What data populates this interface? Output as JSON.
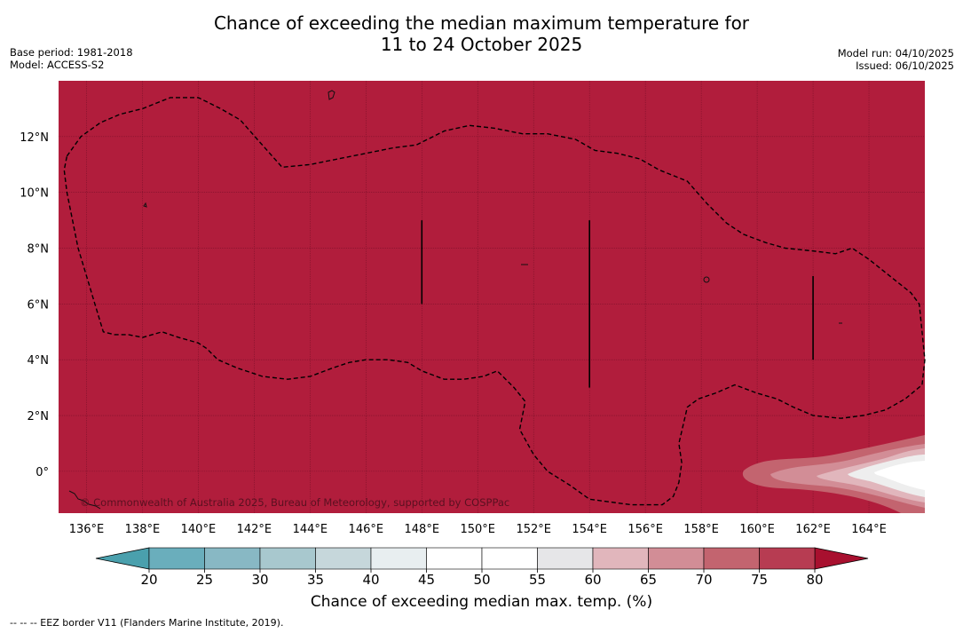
{
  "title": {
    "line1": "Chance of exceeding the median maximum temperature for",
    "line2": "11 to 24 October 2025"
  },
  "meta": {
    "base_period": "Base period: 1981-2018",
    "model": "Model: ACCESS-S2",
    "model_run": "Model run: 04/10/2025",
    "issued": "Issued: 06/10/2025"
  },
  "map": {
    "fill_color": "#b11d3c",
    "lon_range": [
      135,
      166
    ],
    "lat_range": [
      -1.5,
      14
    ],
    "lon_ticks": [
      {
        "value": 136,
        "label": "136°E"
      },
      {
        "value": 138,
        "label": "138°E"
      },
      {
        "value": 140,
        "label": "140°E"
      },
      {
        "value": 142,
        "label": "142°E"
      },
      {
        "value": 144,
        "label": "144°E"
      },
      {
        "value": 146,
        "label": "146°E"
      },
      {
        "value": 148,
        "label": "148°E"
      },
      {
        "value": 150,
        "label": "150°E"
      },
      {
        "value": 152,
        "label": "152°E"
      },
      {
        "value": 154,
        "label": "154°E"
      },
      {
        "value": 156,
        "label": "156°E"
      },
      {
        "value": 158,
        "label": "158°E"
      },
      {
        "value": 160,
        "label": "160°E"
      },
      {
        "value": 162,
        "label": "162°E"
      },
      {
        "value": 164,
        "label": "164°E"
      }
    ],
    "lat_ticks": [
      {
        "value": 12,
        "label": "12°N"
      },
      {
        "value": 10,
        "label": "10°N"
      },
      {
        "value": 8,
        "label": "8°N"
      },
      {
        "value": 6,
        "label": "6°N"
      },
      {
        "value": 4,
        "label": "4°N"
      },
      {
        "value": 2,
        "label": "2°N"
      },
      {
        "value": 0,
        "label": "0°"
      }
    ],
    "eez_border": [
      [
        135.3,
        11.3
      ],
      [
        135.8,
        12.0
      ],
      [
        136.5,
        12.5
      ],
      [
        137.2,
        12.8
      ],
      [
        138.0,
        13.0
      ],
      [
        139.0,
        13.4
      ],
      [
        140.0,
        13.4
      ],
      [
        140.8,
        13.0
      ],
      [
        141.5,
        12.6
      ],
      [
        142.2,
        11.8
      ],
      [
        143.0,
        10.9
      ],
      [
        144.0,
        11.0
      ],
      [
        145.0,
        11.2
      ],
      [
        146.0,
        11.4
      ],
      [
        147.0,
        11.6
      ],
      [
        147.8,
        11.7
      ],
      [
        148.8,
        12.2
      ],
      [
        149.7,
        12.4
      ],
      [
        150.6,
        12.3
      ],
      [
        151.6,
        12.1
      ],
      [
        152.5,
        12.1
      ],
      [
        153.5,
        11.9
      ],
      [
        154.2,
        11.5
      ],
      [
        155.0,
        11.4
      ],
      [
        155.8,
        11.2
      ],
      [
        156.5,
        10.8
      ],
      [
        157.5,
        10.4
      ],
      [
        158.2,
        9.6
      ],
      [
        158.9,
        8.9
      ],
      [
        159.5,
        8.5
      ],
      [
        160.3,
        8.2
      ],
      [
        161.0,
        8.0
      ],
      [
        162.0,
        7.9
      ],
      [
        162.8,
        7.8
      ],
      [
        163.4,
        8.0
      ],
      [
        164.0,
        7.6
      ],
      [
        164.5,
        7.2
      ],
      [
        165.0,
        6.8
      ],
      [
        165.5,
        6.4
      ],
      [
        165.8,
        6.0
      ],
      [
        165.9,
        5.0
      ],
      [
        166.0,
        4.0
      ],
      [
        165.9,
        3.1
      ],
      [
        165.3,
        2.6
      ],
      [
        164.6,
        2.2
      ],
      [
        163.8,
        2.0
      ],
      [
        163.0,
        1.9
      ],
      [
        162.0,
        2.0
      ],
      [
        161.3,
        2.3
      ],
      [
        160.7,
        2.6
      ],
      [
        160.0,
        2.8
      ],
      [
        159.2,
        3.1
      ],
      [
        158.5,
        2.8
      ],
      [
        157.9,
        2.6
      ],
      [
        157.5,
        2.3
      ],
      [
        157.2,
        1.0
      ],
      [
        157.3,
        0.3
      ],
      [
        157.2,
        -0.4
      ],
      [
        157.0,
        -0.9
      ],
      [
        156.6,
        -1.2
      ],
      [
        155.5,
        -1.2
      ],
      [
        154.0,
        -1.0
      ],
      [
        153.3,
        -0.5
      ],
      [
        152.5,
        0.0
      ],
      [
        152.0,
        0.6
      ],
      [
        151.5,
        1.5
      ],
      [
        151.7,
        2.5
      ],
      [
        151.3,
        3.0
      ],
      [
        150.7,
        3.6
      ],
      [
        150.2,
        3.4
      ],
      [
        149.5,
        3.3
      ],
      [
        148.8,
        3.3
      ],
      [
        148.0,
        3.6
      ],
      [
        147.5,
        3.9
      ],
      [
        146.8,
        4.0
      ],
      [
        146.0,
        4.0
      ],
      [
        145.4,
        3.9
      ],
      [
        144.8,
        3.7
      ],
      [
        144.0,
        3.4
      ],
      [
        143.2,
        3.3
      ],
      [
        142.3,
        3.4
      ],
      [
        141.4,
        3.7
      ],
      [
        140.7,
        4.0
      ],
      [
        140.3,
        4.4
      ],
      [
        140.0,
        4.6
      ],
      [
        139.3,
        4.8
      ],
      [
        138.7,
        5.0
      ],
      [
        138.0,
        4.8
      ],
      [
        137.5,
        4.9
      ],
      [
        137.0,
        4.9
      ],
      [
        136.6,
        5.0
      ],
      [
        136.3,
        6.0
      ],
      [
        136.0,
        7.0
      ],
      [
        135.7,
        8.0
      ],
      [
        135.5,
        9.0
      ],
      [
        135.3,
        10.0
      ],
      [
        135.2,
        10.8
      ],
      [
        135.3,
        11.3
      ]
    ],
    "black_lines": [
      {
        "lon": 148,
        "lat_from": 6,
        "lat_to": 9
      },
      {
        "lon": 154,
        "lat_from": 3,
        "lat_to": 9
      },
      {
        "lon": 162,
        "lat_from": 4,
        "lat_to": 7
      }
    ],
    "copyright": "© Commonwealth of Australia 2025, Bureau of Meteorology, supported by COSPPac"
  },
  "colorbar": {
    "label": "Chance of exceeding median max. temp. (%)",
    "ticks": [
      "20",
      "25",
      "30",
      "35",
      "40",
      "45",
      "50",
      "55",
      "60",
      "65",
      "70",
      "75",
      "80"
    ],
    "low_extend_color": "#4aa0ad",
    "high_extend_color": "#a8102f",
    "bins": [
      {
        "from": 20,
        "to": 25,
        "color": "#6aaebc"
      },
      {
        "from": 25,
        "to": 30,
        "color": "#88b8c4"
      },
      {
        "from": 30,
        "to": 35,
        "color": "#a8c8ce"
      },
      {
        "from": 35,
        "to": 40,
        "color": "#c6d7db"
      },
      {
        "from": 40,
        "to": 45,
        "color": "#e8eef0"
      },
      {
        "from": 45,
        "to": 50,
        "color": "#ffffff"
      },
      {
        "from": 50,
        "to": 55,
        "color": "#ffffff"
      },
      {
        "from": 55,
        "to": 60,
        "color": "#e6e6e8"
      },
      {
        "from": 60,
        "to": 65,
        "color": "#e1b6bc"
      },
      {
        "from": 65,
        "to": 70,
        "color": "#d28d96"
      },
      {
        "from": 70,
        "to": 75,
        "color": "#c3646f"
      },
      {
        "from": 75,
        "to": 80,
        "color": "#b73c52"
      }
    ]
  },
  "footer": "--  --  -- EEZ border V11 (Flanders Marine Institute, 2019)."
}
